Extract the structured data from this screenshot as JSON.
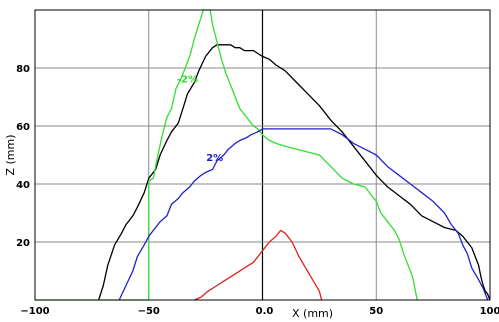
{
  "chart_data": {
    "type": "line",
    "title": "",
    "xlabel": "X (mm)",
    "ylabel": "Z (mm)",
    "xlim": [
      -100,
      100
    ],
    "ylim": [
      0,
      100
    ],
    "x_ticks": [
      -100,
      -50,
      0,
      50,
      100
    ],
    "x_tick_labels": [
      "−100",
      "−50",
      "0.0",
      "50",
      "100"
    ],
    "y_ticks": [
      20,
      40,
      60,
      80
    ],
    "y_tick_labels": [
      "20",
      "40",
      "60",
      "80"
    ],
    "grid": true,
    "colors": {
      "black": "#000000",
      "green": "#33dd33",
      "blue": "#2222cc",
      "red": "#dd2222",
      "grid": "#8a8a8a"
    },
    "annotations": [
      {
        "text": "-2%",
        "x": -33,
        "y": 75,
        "color": "#33dd33"
      },
      {
        "text": "2%",
        "x": -21,
        "y": 48,
        "color": "#2222cc"
      }
    ],
    "series": [
      {
        "color": "#000000",
        "x": [
          -72,
          -70,
          -68,
          -65,
          -62,
          -60,
          -57,
          -55,
          -52,
          -50,
          -47,
          -45,
          -42,
          -40,
          -37,
          -35,
          -33,
          -30,
          -28,
          -25,
          -22,
          -20,
          -18,
          -16,
          -14,
          -12,
          -10,
          -8,
          -6,
          -4,
          -2,
          0,
          3,
          6,
          10,
          15,
          20,
          25,
          30,
          35,
          40,
          45,
          50,
          55,
          60,
          65,
          70,
          75,
          80,
          85,
          88,
          90,
          92,
          94,
          95,
          96,
          97,
          98,
          99,
          100
        ],
        "y": [
          0,
          5,
          12,
          19,
          23,
          26,
          29,
          32,
          37,
          42,
          45,
          50,
          55,
          58,
          61,
          66,
          71,
          75,
          79,
          84,
          87,
          88,
          88,
          88,
          88,
          87,
          87,
          86,
          86,
          86,
          85,
          84,
          83,
          81,
          79,
          75,
          71,
          67,
          62,
          58,
          53,
          48,
          43,
          39,
          36,
          33,
          29,
          27,
          25,
          24,
          22,
          20,
          18,
          14,
          12,
          8,
          5,
          3,
          2,
          0
        ]
      },
      {
        "color": "#33dd33",
        "x": [
          -100,
          -75,
          -55,
          -52,
          -50,
          -50,
          -48,
          -46,
          -44,
          -42,
          -40,
          -38,
          -36,
          -34,
          -32,
          -30,
          -28,
          -26,
          -24,
          -23,
          -22,
          -20,
          -18,
          -16,
          -14,
          -12,
          -10,
          -8,
          -6,
          -4,
          -2,
          0,
          3,
          6,
          10,
          15,
          20,
          25,
          30,
          35,
          40,
          45,
          50,
          52,
          55,
          58,
          60,
          62,
          64,
          65,
          66,
          67,
          68
        ],
        "y": [
          0,
          0,
          0,
          0,
          0,
          41,
          42,
          50,
          57,
          63,
          66,
          73,
          76,
          80,
          84,
          90,
          95,
          100,
          100,
          100,
          95,
          89,
          83,
          78,
          74,
          70,
          66,
          64,
          62,
          60,
          59,
          57,
          55,
          54,
          53,
          52,
          51,
          50,
          46,
          42,
          40,
          39,
          34,
          30,
          27,
          24,
          21,
          16,
          12,
          10,
          8,
          4,
          0
        ]
      },
      {
        "color": "#2222cc",
        "x": [
          -63,
          -60,
          -57,
          -55,
          -52,
          -50,
          -47,
          -45,
          -42,
          -40,
          -37,
          -35,
          -32,
          -30,
          -27,
          -25,
          -22,
          -20,
          -17,
          -15,
          -12,
          -10,
          -7,
          -5,
          -2,
          0,
          5,
          10,
          15,
          20,
          25,
          30,
          35,
          40,
          45,
          50,
          55,
          60,
          65,
          70,
          75,
          80,
          83,
          86,
          88,
          90,
          92,
          95,
          97,
          99
        ],
        "y": [
          0,
          5,
          10,
          15,
          19,
          22,
          25,
          27,
          29,
          33,
          35,
          37,
          39,
          41,
          43,
          44,
          45,
          48,
          50,
          52,
          54,
          55,
          56,
          57,
          58,
          59,
          59,
          59,
          59,
          59,
          59,
          59,
          57,
          54,
          52,
          50,
          46,
          43,
          40,
          37,
          34,
          30,
          26,
          23,
          19,
          16,
          11,
          7,
          4,
          0
        ]
      },
      {
        "color": "#dd2222",
        "x": [
          -30,
          -27,
          -24,
          -20,
          -16,
          -12,
          -8,
          -4,
          0,
          3,
          6,
          8,
          10,
          13,
          16,
          19,
          22,
          25,
          26
        ],
        "y": [
          0,
          1,
          3,
          5,
          7,
          9,
          11,
          13,
          17,
          20,
          22,
          24,
          23,
          20,
          15,
          11,
          7,
          3,
          0
        ]
      }
    ]
  }
}
